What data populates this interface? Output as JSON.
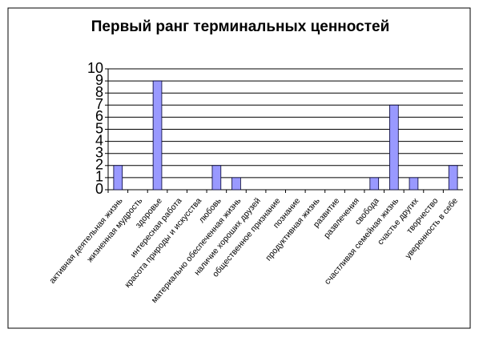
{
  "chart_data": {
    "type": "bar",
    "title": "Первый ранг терминальных ценностей",
    "categories": [
      "активная деятельная жизнь",
      "жизненная мудрость",
      "здоровье",
      "интересная работа",
      "красота природы и искусства",
      "любовь",
      "материально обеспеченная жизнь",
      "наличие хороших друзей",
      "общественное признание",
      "познание",
      "продуктивная жизнь",
      "развитие",
      "развлечения",
      "свобода",
      "счастливая семейная жизнь",
      "счастье других",
      "творчество",
      "уверенность в себе"
    ],
    "values": [
      2,
      0,
      9,
      0,
      0,
      2,
      1,
      0,
      0,
      0,
      0,
      0,
      0,
      1,
      7,
      1,
      0,
      2
    ],
    "color": "#9999ff",
    "ylim": [
      0,
      10
    ],
    "yticks": [
      0,
      1,
      2,
      3,
      4,
      5,
      6,
      7,
      8,
      9,
      10
    ],
    "grid": true
  }
}
